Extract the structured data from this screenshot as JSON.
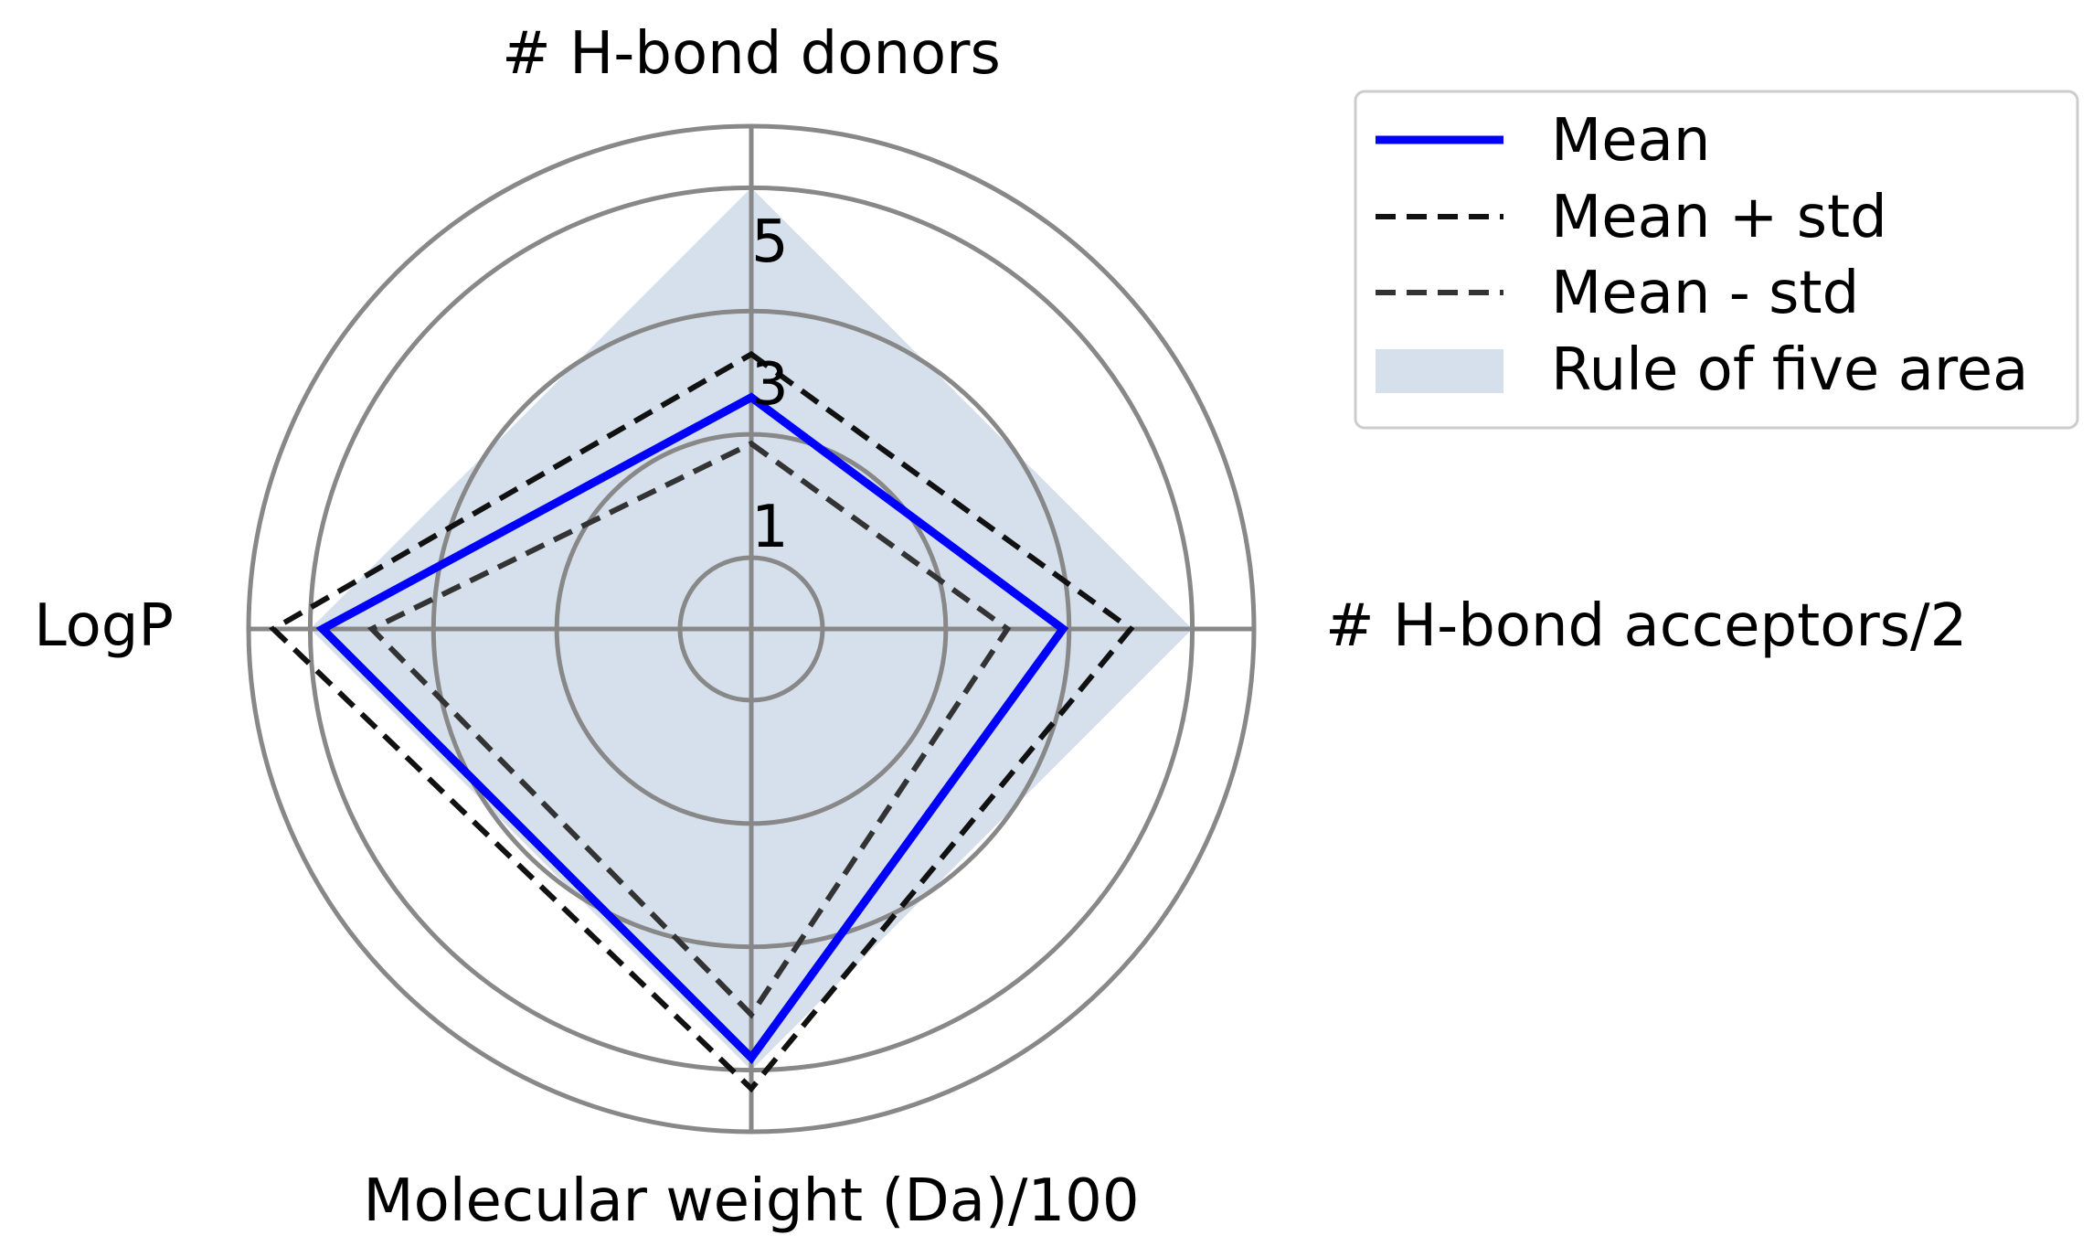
{
  "chart_data": {
    "type": "radar",
    "axes": [
      "# H-bond donors",
      "# H-bond acceptors/2",
      "Molecular weight (Da)/100",
      "LogP"
    ],
    "radial_ticks": [
      "1",
      "3",
      "5"
    ],
    "radial_range": [
      -1,
      6
    ],
    "grid": true,
    "legend_position": "top-right",
    "series": [
      {
        "name": "Mean",
        "values": [
          1.6,
          2.9,
          4.8,
          4.8
        ],
        "color": "#0000ff",
        "style": "solid"
      },
      {
        "name": "Mean + std",
        "values": [
          2.3,
          4.0,
          5.3,
          5.6
        ],
        "color": "#111111",
        "style": "dashed"
      },
      {
        "name": "Mean - std",
        "values": [
          0.85,
          2.0,
          4.1,
          4.0
        ],
        "color": "#333333",
        "style": "dashed"
      },
      {
        "name": "Rule of five area",
        "values": [
          5,
          5,
          5,
          5
        ],
        "color": "#d6e0ec",
        "style": "fill"
      }
    ]
  }
}
